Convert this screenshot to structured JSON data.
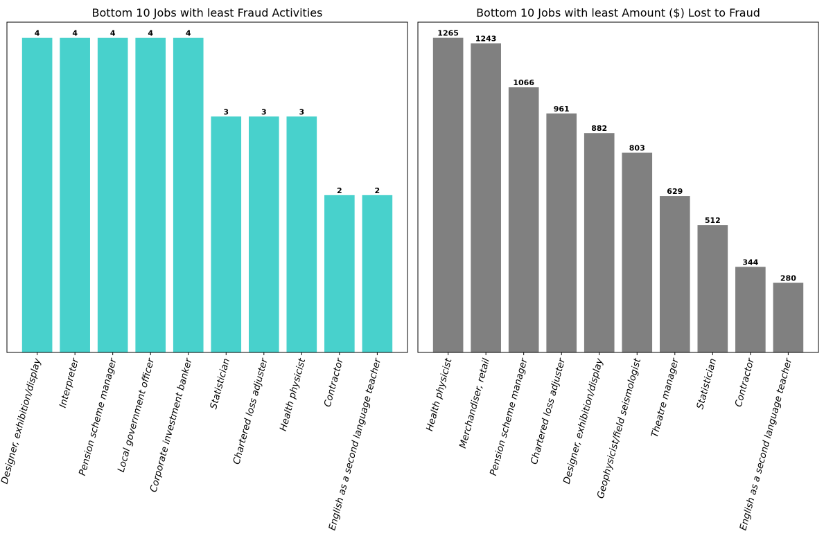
{
  "chart_data": [
    {
      "type": "bar",
      "title": "Bottom 10 Jobs with least Fraud Activities",
      "xlabel": "",
      "ylabel": "",
      "categories": [
        "Designer, exhibition/display",
        "Interpreter",
        "Pension scheme manager",
        "Local government officer",
        "Corporate investment banker",
        "Statistician",
        "Chartered loss adjuster",
        "Health physicist",
        "Contractor",
        "English as a second language teacher"
      ],
      "values": [
        4,
        4,
        4,
        4,
        4,
        3,
        3,
        3,
        2,
        2
      ],
      "ylim": [
        0,
        4.2
      ],
      "bar_color": "#48d1cc",
      "y_ticks_visible": false,
      "grid": false
    },
    {
      "type": "bar",
      "title": "Bottom 10 Jobs with least Amount ($) Lost to Fraud",
      "xlabel": "",
      "ylabel": "",
      "categories": [
        "Health physicist",
        "Merchandiser, retail",
        "Pension scheme manager",
        "Chartered loss adjuster",
        "Designer, exhibition/display",
        "Geophysicist/field seismologist",
        "Theatre manager",
        "Statistician",
        "Contractor",
        "English as a second language teacher"
      ],
      "values": [
        1265,
        1243,
        1066,
        961,
        882,
        803,
        629,
        512,
        344,
        280
      ],
      "ylim": [
        0,
        1328
      ],
      "bar_color": "#808080",
      "y_ticks_visible": false,
      "grid": false
    }
  ]
}
